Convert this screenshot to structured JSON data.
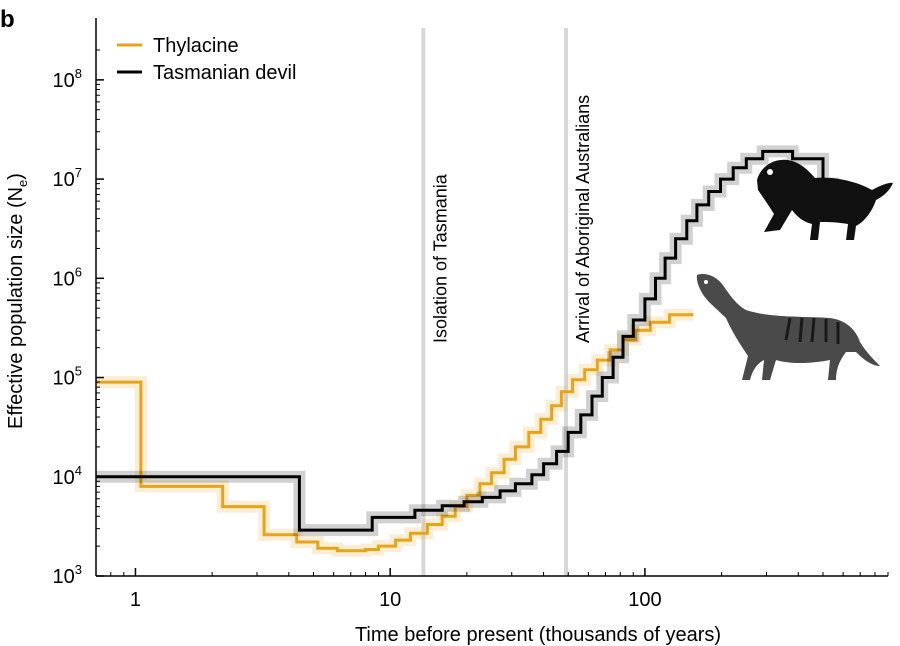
{
  "chart_data": {
    "type": "line",
    "panel_label": "b",
    "xlabel": "Time before present (thousands of years)",
    "ylabel": "Effective population size (N",
    "ylabel_subscript": "e",
    "ylabel_suffix": ")",
    "x_scale": "log",
    "y_scale": "log",
    "xlim": [
      0.7,
      900
    ],
    "ylim": [
      1000,
      200000000
    ],
    "x_ticks": [
      {
        "value": 1,
        "label": "1"
      },
      {
        "value": 10,
        "label": "10"
      },
      {
        "value": 100,
        "label": "100"
      }
    ],
    "y_ticks": [
      {
        "value": 1000,
        "base": "10",
        "exp": "3"
      },
      {
        "value": 10000,
        "base": "10",
        "exp": "4"
      },
      {
        "value": 100000,
        "base": "10",
        "exp": "5"
      },
      {
        "value": 1000000,
        "base": "10",
        "exp": "6"
      },
      {
        "value": 10000000,
        "base": "10",
        "exp": "7"
      },
      {
        "value": 100000000,
        "base": "10",
        "exp": "8"
      }
    ],
    "legend_position": "top-left",
    "annotations": [
      {
        "x": 13.5,
        "label": "Isolation of Tasmania"
      },
      {
        "x": 49,
        "label": "Arrival of Aboriginal Australians"
      }
    ],
    "series": [
      {
        "name": "Thylacine",
        "color": "#e8a317",
        "steps": [
          [
            0.7,
            90000
          ],
          [
            1.05,
            90000
          ],
          [
            1.05,
            8000
          ],
          [
            2.2,
            8000
          ],
          [
            2.2,
            5000
          ],
          [
            3.2,
            5000
          ],
          [
            3.2,
            2600
          ],
          [
            4.3,
            2600
          ],
          [
            4.3,
            2200
          ],
          [
            5.2,
            2200
          ],
          [
            5.2,
            1900
          ],
          [
            6.2,
            1900
          ],
          [
            6.2,
            1800
          ],
          [
            8.0,
            1800
          ],
          [
            8.0,
            1850
          ],
          [
            9.0,
            1850
          ],
          [
            9.0,
            2000
          ],
          [
            10.5,
            2000
          ],
          [
            10.5,
            2300
          ],
          [
            12.0,
            2300
          ],
          [
            12.0,
            2700
          ],
          [
            14.0,
            2700
          ],
          [
            14.0,
            3300
          ],
          [
            16.0,
            3300
          ],
          [
            16.0,
            4000
          ],
          [
            18.0,
            4000
          ],
          [
            18.0,
            5000
          ],
          [
            20.0,
            5000
          ],
          [
            20.0,
            6500
          ],
          [
            22.5,
            6500
          ],
          [
            22.5,
            8500
          ],
          [
            25.0,
            8500
          ],
          [
            25.0,
            11000
          ],
          [
            28.0,
            11000
          ],
          [
            28.0,
            15000
          ],
          [
            31.0,
            15000
          ],
          [
            31.0,
            20000
          ],
          [
            35.0,
            20000
          ],
          [
            35.0,
            28000
          ],
          [
            39.0,
            28000
          ],
          [
            39.0,
            38000
          ],
          [
            43.0,
            38000
          ],
          [
            43.0,
            52000
          ],
          [
            47.0,
            52000
          ],
          [
            47.0,
            72000
          ],
          [
            52.0,
            72000
          ],
          [
            52.0,
            95000
          ],
          [
            58.0,
            95000
          ],
          [
            58.0,
            120000
          ],
          [
            65.0,
            120000
          ],
          [
            65.0,
            150000
          ],
          [
            73.0,
            150000
          ],
          [
            73.0,
            190000
          ],
          [
            82.0,
            190000
          ],
          [
            82.0,
            240000
          ],
          [
            92.0,
            240000
          ],
          [
            92.0,
            300000
          ],
          [
            105.0,
            300000
          ],
          [
            105.0,
            360000
          ],
          [
            125.0,
            360000
          ],
          [
            125.0,
            430000
          ],
          [
            155.0,
            430000
          ]
        ]
      },
      {
        "name": "Tasmanian devil",
        "color": "#000000",
        "steps": [
          [
            0.7,
            10000
          ],
          [
            4.4,
            10000
          ],
          [
            4.4,
            2900
          ],
          [
            8.5,
            2900
          ],
          [
            8.5,
            3900
          ],
          [
            12.5,
            3900
          ],
          [
            12.5,
            4600
          ],
          [
            16.0,
            4600
          ],
          [
            16.0,
            5100
          ],
          [
            19.5,
            5100
          ],
          [
            19.5,
            5600
          ],
          [
            23.0,
            5600
          ],
          [
            23.0,
            6200
          ],
          [
            27.0,
            6200
          ],
          [
            27.0,
            7200
          ],
          [
            31.0,
            7200
          ],
          [
            31.0,
            8500
          ],
          [
            36.0,
            8500
          ],
          [
            36.0,
            10500
          ],
          [
            40.0,
            10500
          ],
          [
            40.0,
            13500
          ],
          [
            45.0,
            13500
          ],
          [
            45.0,
            18000
          ],
          [
            50.0,
            18000
          ],
          [
            50.0,
            28000
          ],
          [
            56.0,
            28000
          ],
          [
            56.0,
            42000
          ],
          [
            62.0,
            42000
          ],
          [
            62.0,
            65000
          ],
          [
            68.0,
            65000
          ],
          [
            68.0,
            100000
          ],
          [
            75.0,
            100000
          ],
          [
            75.0,
            160000
          ],
          [
            82.0,
            160000
          ],
          [
            82.0,
            260000
          ],
          [
            90.0,
            260000
          ],
          [
            90.0,
            380000
          ],
          [
            100.0,
            380000
          ],
          [
            100.0,
            620000
          ],
          [
            110.0,
            620000
          ],
          [
            110.0,
            1000000
          ],
          [
            120.0,
            1000000
          ],
          [
            120.0,
            1600000
          ],
          [
            132.0,
            1600000
          ],
          [
            132.0,
            2500000
          ],
          [
            146.0,
            2500000
          ],
          [
            146.0,
            3800000
          ],
          [
            160.0,
            3800000
          ],
          [
            160.0,
            5500000
          ],
          [
            178.0,
            5500000
          ],
          [
            178.0,
            7500000
          ],
          [
            198.0,
            7500000
          ],
          [
            198.0,
            10000000
          ],
          [
            222.0,
            10000000
          ],
          [
            222.0,
            13000000
          ],
          [
            250.0,
            13000000
          ],
          [
            250.0,
            16000000
          ],
          [
            290.0,
            16000000
          ],
          [
            290.0,
            19000000
          ],
          [
            380.0,
            19000000
          ],
          [
            380.0,
            16000000
          ],
          [
            500.0,
            16000000
          ],
          [
            500.0,
            9000000
          ],
          [
            580.0,
            9000000
          ]
        ]
      }
    ]
  }
}
